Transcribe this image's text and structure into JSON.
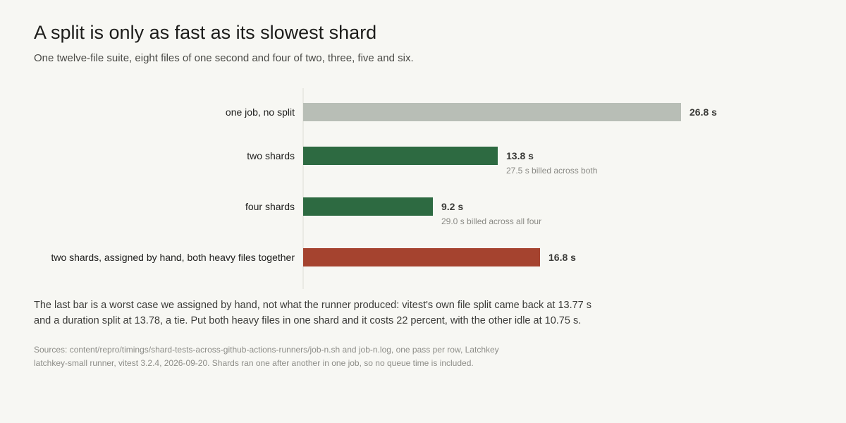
{
  "header": {
    "title": "A split is only as fast as its slowest shard",
    "subtitle": "One twelve-file suite, eight files of one second and four of two, three, five and six."
  },
  "chart_data": {
    "type": "bar",
    "orientation": "horizontal",
    "title": "A split is only as fast as its slowest shard",
    "xlabel": "",
    "ylabel": "",
    "xlim": [
      0,
      26.8
    ],
    "grid": false,
    "categories": [
      "one job, no split",
      "two shards",
      "four shards",
      "two shards, assigned by hand, both heavy files together"
    ],
    "values": [
      26.8,
      13.8,
      9.2,
      16.8
    ],
    "value_labels": [
      "26.8 s",
      "13.8 s",
      "9.2 s",
      "16.8 s"
    ],
    "annotations": [
      "",
      "27.5 s billed across both",
      "29.0 s billed across all four",
      ""
    ],
    "colors": [
      "#b8beb6",
      "#2d6a41",
      "#2d6a41",
      "#a5432f"
    ]
  },
  "footnote": {
    "line1": "The last bar is a worst case we assigned by hand, not what the runner produced: vitest's own file split came back at 13.77 s",
    "line2": "and a duration split at 13.78, a tie. Put both heavy files in one shard and it costs 22 percent, with the other idle at 10.75 s."
  },
  "sources": {
    "line1": "Sources: content/repro/timings/shard-tests-across-github-actions-runners/job-n.sh and job-n.log, one pass per row, Latchkey",
    "line2": "latchkey-small runner, vitest 3.2.4, 2026-09-20. Shards ran one after another in one job, so no queue time is included."
  }
}
